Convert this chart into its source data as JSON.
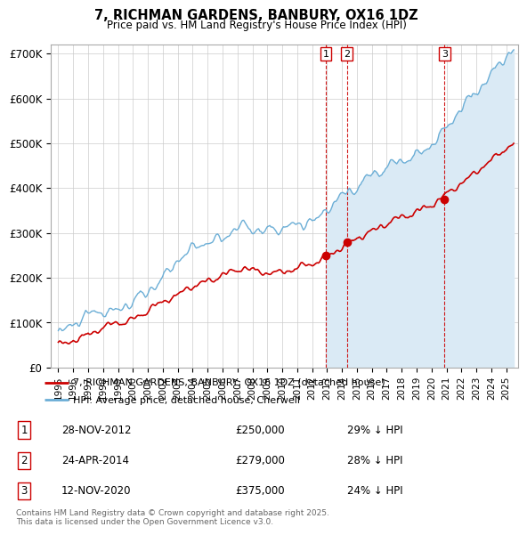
{
  "title": "7, RICHMAN GARDENS, BANBURY, OX16 1DZ",
  "subtitle": "Price paid vs. HM Land Registry's House Price Index (HPI)",
  "ylim": [
    0,
    720000
  ],
  "yticks": [
    0,
    100000,
    200000,
    300000,
    400000,
    500000,
    600000,
    700000
  ],
  "hpi_color": "#6baed6",
  "hpi_fill_color": "#daeaf5",
  "price_color": "#cc0000",
  "vline_color": "#cc0000",
  "background_color": "#ffffff",
  "grid_color": "#cccccc",
  "sale1_date": 2012.91,
  "sale1_price": 250000,
  "sale1_label": "1",
  "sale2_date": 2014.32,
  "sale2_price": 279000,
  "sale2_label": "2",
  "sale3_date": 2020.87,
  "sale3_price": 375000,
  "sale3_label": "3",
  "legend_price_label": "7, RICHMAN GARDENS, BANBURY, OX16 1DZ (detached house)",
  "legend_hpi_label": "HPI: Average price, detached house, Cherwell",
  "table_rows": [
    {
      "num": "1",
      "date": "28-NOV-2012",
      "price": "£250,000",
      "pct": "29% ↓ HPI"
    },
    {
      "num": "2",
      "date": "24-APR-2014",
      "price": "£279,000",
      "pct": "28% ↓ HPI"
    },
    {
      "num": "3",
      "date": "12-NOV-2020",
      "price": "£375,000",
      "pct": "24% ↓ HPI"
    }
  ],
  "footnote": "Contains HM Land Registry data © Crown copyright and database right 2025.\nThis data is licensed under the Open Government Licence v3.0.",
  "xmin": 1994.5,
  "xmax": 2025.8
}
